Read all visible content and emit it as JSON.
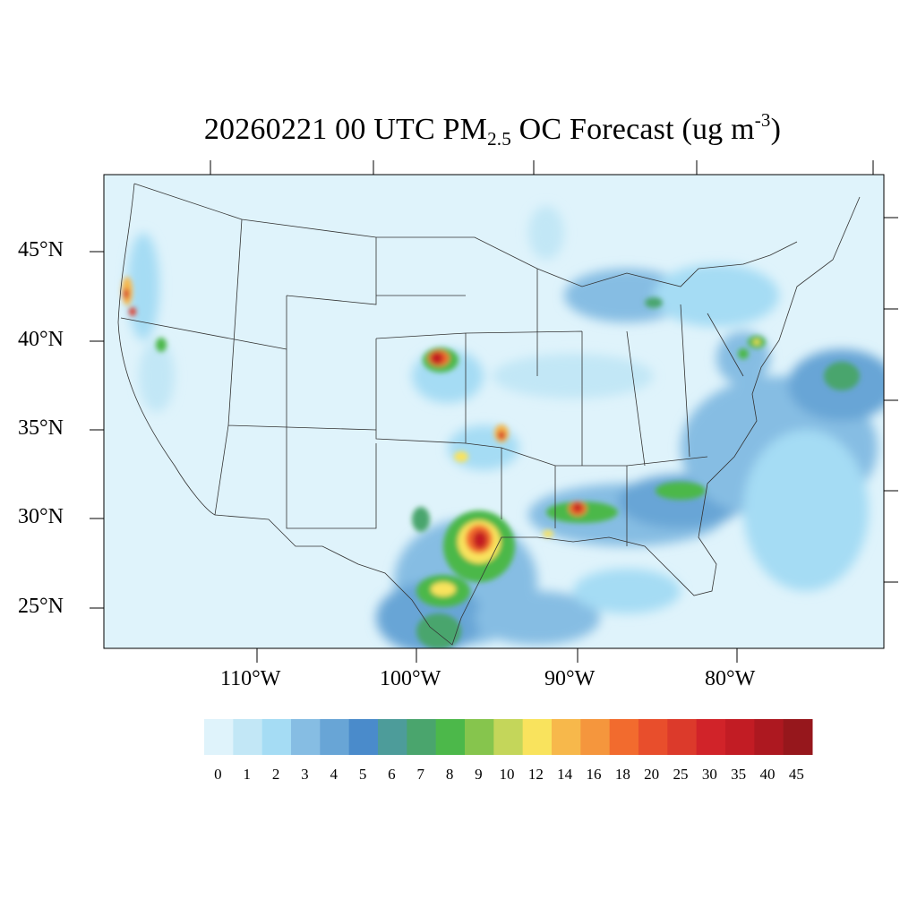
{
  "title": {
    "date_time": "20260221 00 UTC PM",
    "subscript": "2.5",
    "rest": " OC Forecast (ug m",
    "superscript": "-3",
    "close": ")"
  },
  "axes": {
    "lat_labels": [
      "45°N",
      "40°N",
      "35°N",
      "30°N",
      "25°N"
    ],
    "lon_labels": [
      "110°W",
      "100°W",
      "90°W",
      "80°W"
    ]
  },
  "colorbar": {
    "levels": [
      "0",
      "1",
      "2",
      "3",
      "4",
      "5",
      "6",
      "7",
      "8",
      "9",
      "10",
      "12",
      "14",
      "16",
      "18",
      "20",
      "25",
      "30",
      "35",
      "40",
      "45"
    ],
    "colors": [
      "#dff3fb",
      "#c2e7f6",
      "#a5dcf4",
      "#86bde3",
      "#68a5d6",
      "#4a8bcb",
      "#4d9c9a",
      "#4aa56d",
      "#4cb84a",
      "#86c54d",
      "#c4d65a",
      "#f9e35d",
      "#f7b84b",
      "#f5963d",
      "#f26b2e",
      "#e84e2c",
      "#dc3a2b",
      "#d12329",
      "#c21c24",
      "#ad1820",
      "#96171c"
    ]
  },
  "map": {
    "background": "#dff3fb",
    "boundary_color": "#333333"
  }
}
